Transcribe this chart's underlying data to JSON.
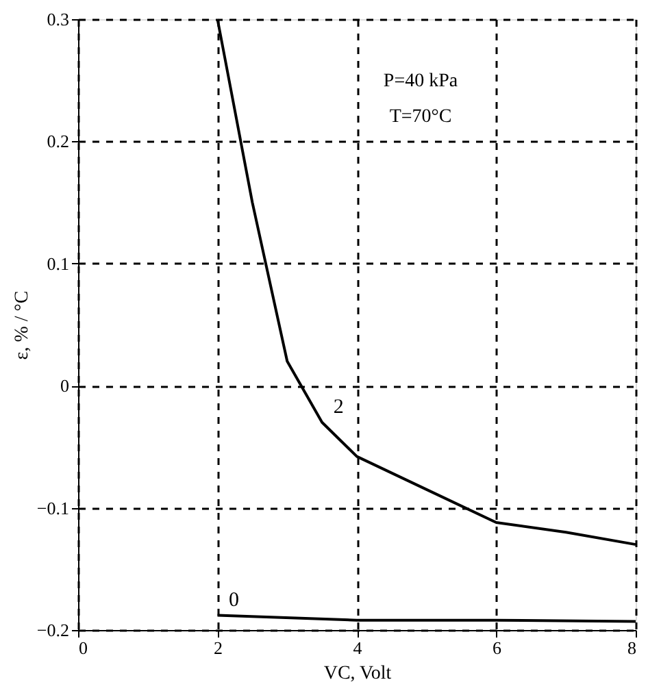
{
  "chart_data": {
    "type": "line",
    "xlabel": "VC, Volt",
    "ylabel": "ε, % / °C",
    "xlim": [
      0,
      8
    ],
    "xticks": [
      0,
      2,
      4,
      6,
      8
    ],
    "ylim": [
      -0.2,
      0.3
    ],
    "yticks": [
      -0.2,
      -0.1,
      0,
      0.1,
      0.2,
      0.3
    ],
    "grid": true,
    "line_style": "solid",
    "marker": "none",
    "annotations": [
      "P=40 kPa",
      "T=70°C"
    ],
    "series": [
      {
        "name": "2",
        "color": "#000000",
        "x": [
          2,
          2.5,
          3,
          3.5,
          4,
          5,
          6,
          7,
          8
        ],
        "values": [
          0.3,
          0.15,
          0.02,
          -0.03,
          -0.058,
          -0.085,
          -0.112,
          -0.12,
          -0.13
        ]
      },
      {
        "name": "0",
        "color": "#000000",
        "x": [
          2,
          4,
          6,
          8
        ],
        "values": [
          -0.188,
          -0.192,
          -0.192,
          -0.193
        ]
      }
    ]
  }
}
